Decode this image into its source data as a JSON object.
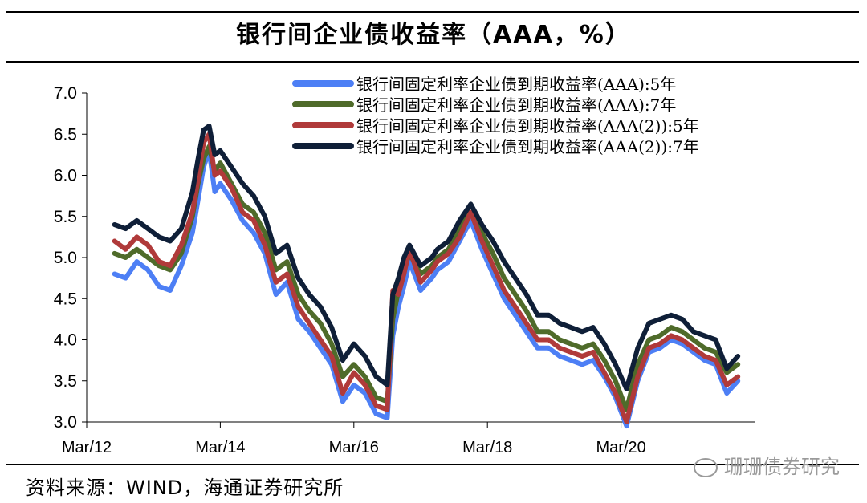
{
  "header": {
    "title": "银行间企业债收益率（AAA，%）"
  },
  "footer": {
    "source": "资料来源：WIND，海通证券研究所",
    "watermark": "珊珊债券研究"
  },
  "chart_data": {
    "type": "line",
    "title": "银行间企业债收益率（AAA，%）",
    "xlabel": "",
    "ylabel": "",
    "ylim": [
      3.0,
      7.0
    ],
    "yticks": [
      "7.0",
      "6.5",
      "6.0",
      "5.5",
      "5.0",
      "4.5",
      "4.0",
      "3.5",
      "3.0"
    ],
    "xticks": [
      "Mar/12",
      "Mar/14",
      "Mar/16",
      "Mar/18",
      "Mar/20"
    ],
    "x": [
      "2012-08",
      "2012-10",
      "2012-12",
      "2013-02",
      "2013-04",
      "2013-06",
      "2013-08",
      "2013-10",
      "2013-11",
      "2013-12",
      "2014-01",
      "2014-02",
      "2014-03",
      "2014-05",
      "2014-07",
      "2014-09",
      "2014-11",
      "2015-01",
      "2015-03",
      "2015-05",
      "2015-07",
      "2015-09",
      "2015-11",
      "2016-01",
      "2016-03",
      "2016-05",
      "2016-07",
      "2016-09",
      "2016-10",
      "2016-11",
      "2016-12",
      "2017-01",
      "2017-03",
      "2017-05",
      "2017-06",
      "2017-08",
      "2017-10",
      "2017-12",
      "2018-02",
      "2018-04",
      "2018-06",
      "2018-08",
      "2018-10",
      "2018-12",
      "2019-02",
      "2019-04",
      "2019-06",
      "2019-08",
      "2019-10",
      "2019-12",
      "2020-02",
      "2020-04",
      "2020-06",
      "2020-08",
      "2020-10",
      "2020-12",
      "2021-02",
      "2021-04",
      "2021-06",
      "2021-08",
      "2021-10",
      "2021-12"
    ],
    "series": [
      {
        "name": "银行间固定利率企业债到期收益率(AAA):5年",
        "color": "#4d7ff5",
        "values": [
          4.8,
          4.75,
          4.95,
          4.85,
          4.65,
          4.6,
          4.9,
          5.3,
          5.7,
          6.1,
          6.3,
          5.8,
          5.9,
          5.7,
          5.45,
          5.3,
          5.05,
          4.55,
          4.7,
          4.25,
          4.1,
          3.9,
          3.7,
          3.25,
          3.45,
          3.35,
          3.1,
          3.05,
          4.05,
          4.4,
          4.65,
          4.95,
          4.6,
          4.75,
          4.85,
          4.95,
          5.2,
          5.45,
          5.1,
          4.8,
          4.5,
          4.3,
          4.1,
          3.9,
          3.9,
          3.8,
          3.75,
          3.7,
          3.75,
          3.55,
          3.3,
          2.95,
          3.5,
          3.85,
          3.9,
          4.0,
          3.95,
          3.85,
          3.75,
          3.7,
          3.35,
          3.5
        ]
      },
      {
        "name": "银行间固定利率企业债到期收益率(AAA):7年",
        "color": "#4f6b2a",
        "values": [
          5.05,
          5.0,
          5.1,
          5.0,
          4.9,
          4.85,
          5.05,
          5.5,
          5.9,
          6.2,
          6.35,
          6.05,
          6.15,
          5.9,
          5.65,
          5.55,
          5.3,
          4.85,
          4.95,
          4.55,
          4.35,
          4.2,
          3.95,
          3.55,
          3.7,
          3.55,
          3.3,
          3.25,
          4.25,
          4.6,
          4.85,
          5.05,
          4.8,
          4.9,
          5.0,
          5.1,
          5.35,
          5.55,
          5.3,
          5.05,
          4.75,
          4.55,
          4.35,
          4.1,
          4.1,
          4.0,
          3.95,
          3.9,
          3.95,
          3.75,
          3.5,
          3.15,
          3.7,
          4.0,
          4.05,
          4.15,
          4.1,
          4.0,
          3.9,
          3.85,
          3.6,
          3.7
        ]
      },
      {
        "name": "银行间固定利率企业债到期收益率(AAA(2)):5年",
        "color": "#b03a3a",
        "values": [
          5.2,
          5.1,
          5.25,
          5.15,
          4.95,
          4.9,
          5.15,
          5.55,
          5.95,
          6.4,
          6.5,
          6.0,
          6.05,
          5.85,
          5.55,
          5.45,
          5.15,
          4.7,
          4.8,
          4.4,
          4.2,
          4.0,
          3.8,
          3.35,
          3.6,
          3.45,
          3.2,
          3.15,
          4.6,
          4.55,
          4.8,
          5.1,
          4.7,
          4.85,
          4.95,
          5.05,
          5.25,
          5.55,
          5.2,
          4.9,
          4.6,
          4.4,
          4.2,
          4.0,
          4.0,
          3.9,
          3.85,
          3.8,
          3.85,
          3.6,
          3.35,
          3.0,
          3.55,
          3.9,
          3.95,
          4.05,
          4.0,
          3.9,
          3.8,
          3.75,
          3.45,
          3.55
        ]
      },
      {
        "name": "银行间固定利率企业债到期收益率(AAA(2)):7年",
        "color": "#0f1f38",
        "values": [
          5.4,
          5.35,
          5.45,
          5.35,
          5.25,
          5.2,
          5.35,
          5.8,
          6.2,
          6.55,
          6.6,
          6.25,
          6.3,
          6.1,
          5.9,
          5.75,
          5.5,
          5.05,
          5.15,
          4.75,
          4.55,
          4.4,
          4.15,
          3.75,
          3.95,
          3.8,
          3.55,
          3.45,
          4.55,
          4.75,
          5.0,
          5.15,
          4.9,
          5.0,
          5.1,
          5.2,
          5.45,
          5.65,
          5.4,
          5.2,
          4.95,
          4.75,
          4.55,
          4.3,
          4.3,
          4.2,
          4.15,
          4.1,
          4.15,
          3.95,
          3.7,
          3.4,
          3.9,
          4.2,
          4.25,
          4.3,
          4.25,
          4.1,
          4.05,
          4.0,
          3.65,
          3.8
        ]
      }
    ],
    "legend": "top-right",
    "grid": false
  }
}
